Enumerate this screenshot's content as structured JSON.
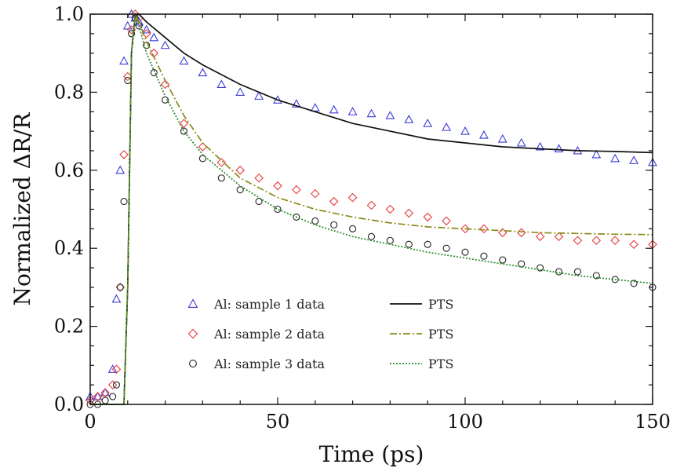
{
  "chart_data": {
    "type": "scatter",
    "title": "",
    "xlabel": "Time (ps)",
    "ylabel": "Normalized ΔR/R",
    "xlim": [
      0,
      150
    ],
    "ylim": [
      0.0,
      1.0
    ],
    "xticks": [
      "0",
      "50",
      "100",
      "150"
    ],
    "yticks": [
      "0.0",
      "0.2",
      "0.4",
      "0.6",
      "0.8",
      "1.0"
    ],
    "grid": false,
    "legend_position": "bottom-center",
    "series": [
      {
        "name": "Al: sample 1 data",
        "kind": "markers",
        "marker": "triangle",
        "color": "#3b3bd8",
        "x": [
          0,
          2,
          4,
          6,
          7,
          8,
          9,
          10,
          11,
          12,
          13,
          15,
          17,
          20,
          25,
          30,
          35,
          40,
          45,
          50,
          55,
          60,
          65,
          70,
          75,
          80,
          85,
          90,
          95,
          100,
          105,
          110,
          115,
          120,
          125,
          130,
          135,
          140,
          145,
          150
        ],
        "y": [
          0.02,
          0.02,
          0.03,
          0.09,
          0.27,
          0.6,
          0.88,
          0.97,
          1.0,
          0.99,
          0.98,
          0.96,
          0.94,
          0.92,
          0.88,
          0.85,
          0.82,
          0.8,
          0.79,
          0.78,
          0.77,
          0.76,
          0.755,
          0.75,
          0.745,
          0.74,
          0.73,
          0.72,
          0.71,
          0.7,
          0.69,
          0.68,
          0.67,
          0.66,
          0.655,
          0.65,
          0.64,
          0.63,
          0.625,
          0.62
        ]
      },
      {
        "name": "Al: sample 2 data",
        "kind": "markers",
        "marker": "diamond",
        "color": "#e83a3a",
        "x": [
          0,
          2,
          4,
          6,
          7,
          8,
          9,
          10,
          11,
          12,
          13,
          15,
          17,
          20,
          25,
          30,
          35,
          40,
          45,
          50,
          55,
          60,
          65,
          70,
          75,
          80,
          85,
          90,
          95,
          100,
          105,
          110,
          115,
          120,
          125,
          130,
          135,
          140,
          145,
          150
        ],
        "y": [
          0.01,
          0.02,
          0.03,
          0.05,
          0.09,
          0.3,
          0.64,
          0.84,
          0.96,
          1.0,
          0.99,
          0.95,
          0.9,
          0.82,
          0.72,
          0.66,
          0.62,
          0.6,
          0.58,
          0.56,
          0.55,
          0.54,
          0.52,
          0.53,
          0.51,
          0.5,
          0.49,
          0.48,
          0.47,
          0.45,
          0.45,
          0.44,
          0.44,
          0.43,
          0.43,
          0.42,
          0.42,
          0.42,
          0.41,
          0.41
        ]
      },
      {
        "name": "Al: sample 3 data",
        "kind": "markers",
        "marker": "circle",
        "color": "#222222",
        "x": [
          0,
          2,
          4,
          6,
          7,
          8,
          9,
          10,
          11,
          12,
          13,
          15,
          17,
          20,
          25,
          30,
          35,
          40,
          45,
          50,
          55,
          60,
          65,
          70,
          75,
          80,
          85,
          90,
          95,
          100,
          105,
          110,
          115,
          120,
          125,
          130,
          135,
          140,
          145,
          150
        ],
        "y": [
          0.0,
          0.0,
          0.01,
          0.02,
          0.05,
          0.3,
          0.52,
          0.83,
          0.95,
          0.99,
          0.97,
          0.92,
          0.85,
          0.78,
          0.7,
          0.63,
          0.58,
          0.55,
          0.52,
          0.5,
          0.48,
          0.47,
          0.46,
          0.45,
          0.43,
          0.42,
          0.41,
          0.41,
          0.4,
          0.39,
          0.38,
          0.37,
          0.36,
          0.35,
          0.34,
          0.34,
          0.33,
          0.32,
          0.31,
          0.3
        ]
      },
      {
        "name": "PTS",
        "kind": "line",
        "linestyle": "solid",
        "color": "#111111",
        "x": [
          0,
          9,
          10,
          11,
          12,
          13,
          15,
          20,
          25,
          30,
          40,
          50,
          60,
          70,
          80,
          90,
          100,
          110,
          120,
          130,
          140,
          150
        ],
        "y": [
          0.0,
          0.0,
          0.3,
          0.9,
          1.0,
          1.0,
          0.98,
          0.94,
          0.9,
          0.87,
          0.82,
          0.78,
          0.75,
          0.72,
          0.7,
          0.68,
          0.67,
          0.66,
          0.655,
          0.65,
          0.648,
          0.645
        ]
      },
      {
        "name": "PTS",
        "kind": "line",
        "linestyle": "dashdot",
        "color": "#8a8a1a",
        "x": [
          0,
          9,
          10,
          11,
          12,
          13,
          15,
          20,
          25,
          30,
          40,
          50,
          60,
          70,
          80,
          90,
          100,
          110,
          120,
          130,
          140,
          150
        ],
        "y": [
          0.0,
          0.0,
          0.3,
          0.9,
          1.0,
          0.98,
          0.93,
          0.83,
          0.74,
          0.67,
          0.58,
          0.53,
          0.5,
          0.48,
          0.465,
          0.455,
          0.45,
          0.445,
          0.44,
          0.438,
          0.436,
          0.435
        ]
      },
      {
        "name": "PTS",
        "kind": "line",
        "linestyle": "dotted",
        "color": "#2a8a2a",
        "x": [
          0,
          9,
          10,
          11,
          12,
          13,
          15,
          20,
          25,
          30,
          40,
          50,
          60,
          70,
          80,
          90,
          100,
          110,
          120,
          130,
          140,
          150
        ],
        "y": [
          0.0,
          0.0,
          0.3,
          0.9,
          1.0,
          0.97,
          0.9,
          0.79,
          0.7,
          0.64,
          0.56,
          0.5,
          0.46,
          0.43,
          0.41,
          0.39,
          0.375,
          0.36,
          0.345,
          0.33,
          0.32,
          0.31
        ]
      }
    ]
  }
}
